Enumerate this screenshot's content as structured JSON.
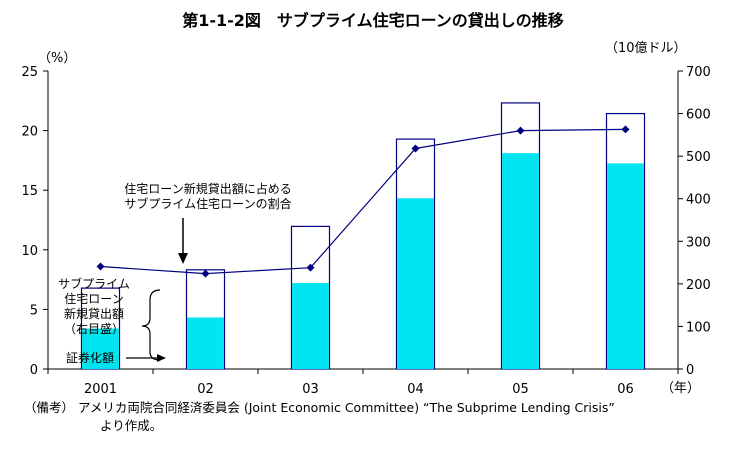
{
  "chart_data": {
    "type": "bar",
    "title": "第1-1-2図　サブプライム住宅ローンの貸出しの推移",
    "categories": [
      "2001",
      "02",
      "03",
      "04",
      "05",
      "06"
    ],
    "x_suffix": "（年）",
    "left_axis": {
      "unit": "（%）",
      "ylim": [
        0,
        25
      ],
      "ticks": [
        "0",
        "5",
        "10",
        "15",
        "20",
        "25"
      ]
    },
    "right_axis": {
      "unit": "（10億ドル）",
      "ylim": [
        0,
        700
      ],
      "ticks": [
        "0",
        "100",
        "200",
        "300",
        "400",
        "500",
        "600",
        "700"
      ]
    },
    "series": [
      {
        "name": "証券化額",
        "kind": "bar",
        "axis": "right",
        "color": "#00e5f0",
        "values": [
          95,
          121,
          202,
          401,
          507,
          483
        ]
      },
      {
        "name": "サブプライム住宅ローン新規貸出額（右目盛）",
        "kind": "bar-outline",
        "axis": "right",
        "color": "#000080",
        "values": [
          190,
          233,
          335,
          540,
          625,
          600
        ]
      },
      {
        "name": "住宅ローン新規貸出額に占めるサブプライム住宅ローンの割合",
        "kind": "line",
        "axis": "left",
        "color": "#000080",
        "values": [
          8.6,
          8.0,
          8.5,
          18.5,
          20.0,
          20.1
        ]
      }
    ],
    "annotations": {
      "share_label": [
        "住宅ローン新規貸出額に占める",
        "サブプライム住宅ローンの割合"
      ],
      "total_label": [
        "サブプライム",
        "住宅ローン",
        "新規貸出額",
        "（右目盛）"
      ],
      "securitized_label": "証券化額"
    }
  },
  "note": {
    "label": "（備考）",
    "line1": "アメリカ両院合同経済委員会 (Joint Economic Committee) “The Subprime Lending Crisis”",
    "line2": "より作成。"
  }
}
